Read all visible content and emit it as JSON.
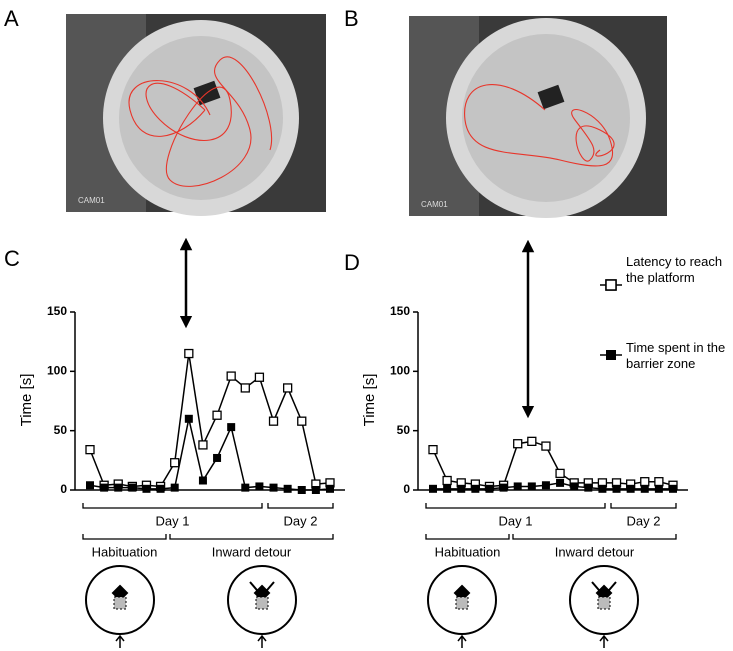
{
  "panel_labels": [
    "A",
    "B",
    "C",
    "D"
  ],
  "photo_labels": [
    "CAM01",
    "CAM01"
  ],
  "chart_data": [
    {
      "type": "line",
      "ylabel": "Time [s]",
      "categories": [
        null,
        null,
        null,
        null,
        null,
        null,
        null,
        null,
        null,
        null,
        null,
        null,
        null,
        null,
        null,
        null,
        null,
        null
      ],
      "ylim": [
        0,
        150
      ],
      "yticks": [
        0,
        50,
        100,
        150
      ],
      "series": [
        {
          "name": "Latency to reach the platform",
          "color": "#000000",
          "marker": "open-square",
          "values": [
            34,
            4,
            5,
            3,
            4,
            3,
            23,
            115,
            38,
            63,
            96,
            86,
            95,
            58,
            86,
            58,
            5,
            6
          ]
        },
        {
          "name": "Time spent in the barrier zone",
          "color": "#000000",
          "marker": "filled-square",
          "values": [
            4,
            2,
            2,
            2,
            1,
            1,
            2,
            60,
            8,
            27,
            53,
            2,
            3,
            2,
            1,
            0,
            0,
            1
          ]
        }
      ],
      "annotations": [
        "Day 1",
        "Day 2",
        "Habituation",
        "Inward detour"
      ]
    },
    {
      "type": "line",
      "ylabel": "Time [s]",
      "categories": [
        null,
        null,
        null,
        null,
        null,
        null,
        null,
        null,
        null,
        null,
        null,
        null,
        null,
        null,
        null,
        null,
        null,
        null
      ],
      "ylim": [
        0,
        150
      ],
      "yticks": [
        0,
        50,
        100,
        150
      ],
      "series": [
        {
          "name": "Latency to reach the platform",
          "color": "#000000",
          "marker": "open-square",
          "values": [
            34,
            8,
            6,
            5,
            3,
            4,
            39,
            41,
            37,
            14,
            6,
            6,
            6,
            6,
            5,
            7,
            7,
            4
          ]
        },
        {
          "name": "Time spent in the barrier zone",
          "color": "#000000",
          "marker": "filled-square",
          "values": [
            1,
            1,
            1,
            1,
            1,
            2,
            3,
            3,
            4,
            6,
            3,
            2,
            1,
            1,
            1,
            1,
            1,
            1
          ]
        }
      ],
      "annotations": [
        "Day 1",
        "Day 2",
        "Habituation",
        "Inward detour"
      ]
    }
  ]
}
